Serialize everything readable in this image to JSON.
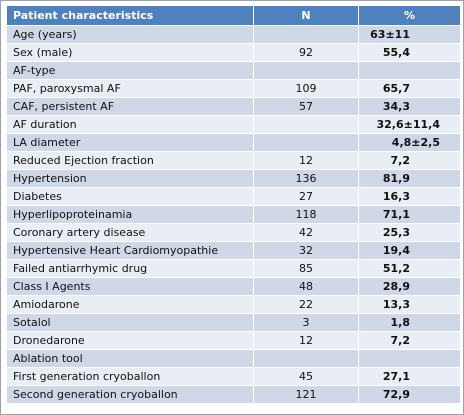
{
  "table": {
    "headers": [
      "Patient characteristics",
      "N",
      "%"
    ],
    "rows": [
      {
        "label": "Age (years)",
        "n": "",
        "pct": "63±11"
      },
      {
        "label": "Sex (male)",
        "n": "92",
        "pct": "55,4"
      },
      {
        "label": "AF-type",
        "n": "",
        "pct": ""
      },
      {
        "label": "PAF, paroxysmal AF",
        "n": "109",
        "pct": "65,7"
      },
      {
        "label": "CAF, persistent AF",
        "n": "57",
        "pct": "34,3"
      },
      {
        "label": "AF duration",
        "n": "",
        "pct": "32,6±11,4"
      },
      {
        "label": "LA  diameter",
        "n": "",
        "pct": "4,8±2,5"
      },
      {
        "label": "Reduced Ejection fraction",
        "n": "12",
        "pct": "7,2"
      },
      {
        "label": "Hypertension",
        "n": "136",
        "pct": "81,9"
      },
      {
        "label": "Diabetes",
        "n": "27",
        "pct": "16,3"
      },
      {
        "label": "Hyperlipoproteinamia",
        "n": "118",
        "pct": "71,1"
      },
      {
        "label": "Coronary artery disease",
        "n": "42",
        "pct": "25,3"
      },
      {
        "label": "Hypertensive Heart Cardiomyopathie",
        "n": "32",
        "pct": "19,4"
      },
      {
        "label": "Failed antiarrhymic drug",
        "n": "85",
        "pct": "51,2"
      },
      {
        "label": "Class I Agents",
        "n": "48",
        "pct": "28,9"
      },
      {
        "label": "Amiodarone",
        "n": "22",
        "pct": "13,3"
      },
      {
        "label": "Sotalol",
        "n": "3",
        "pct": "1,8"
      },
      {
        "label": "Dronedarone",
        "n": "12",
        "pct": "7,2"
      },
      {
        "label": "Ablation tool",
        "n": "",
        "pct": ""
      },
      {
        "label": "First generation cryoballon",
        "n": "45",
        "pct": "27,1"
      },
      {
        "label": "Second generation cryoballon",
        "n": "121",
        "pct": "72,9"
      }
    ]
  },
  "colors": {
    "header_bg": "#4f81bd",
    "row_odd": "#d0d8e8",
    "row_even": "#e9edf4"
  }
}
